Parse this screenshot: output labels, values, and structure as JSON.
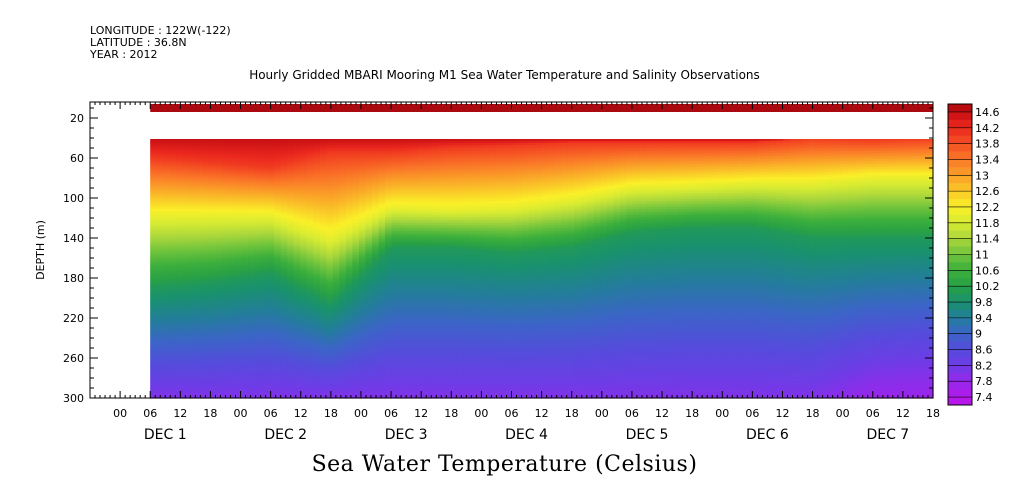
{
  "header": {
    "longitude": "LONGITUDE : 122W(-122)",
    "latitude": "LATITUDE : 36.8N",
    "year": "YEAR : 2012"
  },
  "chart_data": {
    "type": "heatmap",
    "title": "Hourly Gridded MBARI Mooring M1 Sea Water Temperature and Salinity Observations",
    "subtitle": "Sea Water Temperature (Celsius)",
    "ylabel": "DEPTH (m)",
    "xlabel": "",
    "x_hour_ticks": [
      "00",
      "06",
      "12",
      "18",
      "00",
      "06",
      "12",
      "18",
      "00",
      "06",
      "12",
      "18",
      "00",
      "06",
      "12",
      "18",
      "00",
      "06",
      "12",
      "18",
      "00",
      "06",
      "12",
      "18",
      "00",
      "06",
      "12",
      "18"
    ],
    "x_day_labels": [
      "DEC  1",
      "DEC  2",
      "DEC  3",
      "DEC  4",
      "DEC  5",
      "DEC  6",
      "DEC  7"
    ],
    "x_range_hours": [
      -6,
      162
    ],
    "data_start_hour": 6,
    "y_ticks": [
      20,
      60,
      100,
      140,
      180,
      220,
      260,
      300
    ],
    "y_range": [
      4,
      300
    ],
    "y_inverted": true,
    "data_gap_depth": [
      14,
      41
    ],
    "colorbar_labels": [
      "14.6",
      "14.2",
      "13.8",
      "13.4",
      "13",
      "12.6",
      "12.2",
      "11.8",
      "11.4",
      "11",
      "10.6",
      "10.2",
      "9.8",
      "9.4",
      "9",
      "8.6",
      "8.2",
      "7.8",
      "7.4"
    ],
    "colorbar_range": [
      7.2,
      14.8
    ],
    "surface_temp": 14.8,
    "isotherm_depths": {
      "hours": [
        6,
        18,
        30,
        42,
        54,
        66,
        78,
        90,
        102,
        114,
        126,
        138,
        150,
        162
      ],
      "t14": [
        60,
        65,
        70,
        55,
        55,
        50,
        48,
        45,
        45,
        45,
        45,
        40,
        42,
        40
      ],
      "t12": [
        118,
        118,
        118,
        140,
        110,
        112,
        110,
        102,
        90,
        88,
        85,
        85,
        80,
        80
      ],
      "t10": [
        190,
        185,
        175,
        205,
        150,
        150,
        155,
        150,
        135,
        130,
        130,
        140,
        140,
        140
      ],
      "t8": [
        300,
        300,
        300,
        300,
        300,
        300,
        300,
        300,
        300,
        300,
        300,
        300,
        280,
        275
      ]
    }
  }
}
